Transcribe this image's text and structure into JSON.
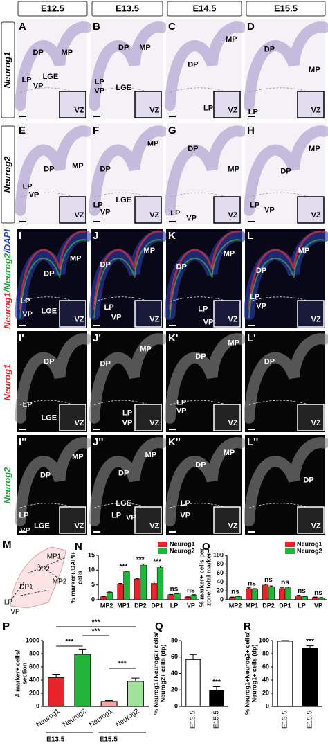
{
  "column_headers": [
    "E12.5",
    "E13.5",
    "E14.5",
    "E15.5"
  ],
  "row_labels": [
    {
      "parts": [
        {
          "text": "Neurog1",
          "color": "#000000"
        }
      ]
    },
    {
      "parts": [
        {
          "text": "Neurog2",
          "color": "#000000"
        }
      ]
    },
    {
      "parts": [
        {
          "text": "Neurog1",
          "color": "#e8242a"
        },
        {
          "text": "/Neurog2",
          "color": "#1fa23a"
        },
        {
          "text": "/DAPI",
          "color": "#1f3fcf"
        }
      ]
    },
    {
      "parts": [
        {
          "text": "Neurog1",
          "color": "#e8242a"
        }
      ]
    },
    {
      "parts": [
        {
          "text": "Neurog2",
          "color": "#1fa23a"
        }
      ]
    }
  ],
  "panels": [
    {
      "letter": "A",
      "labels": [
        "DP",
        "MP",
        "LP",
        "VP",
        "LGE",
        "VZ"
      ]
    },
    {
      "letter": "B",
      "labels": [
        "DP",
        "MP",
        "LP",
        "VP",
        "LGE",
        "VZ"
      ]
    },
    {
      "letter": "C",
      "labels": [
        "DP",
        "MP",
        "LP",
        "VZ"
      ]
    },
    {
      "letter": "D",
      "labels": [
        "DP",
        "MP",
        "LP",
        "VZ"
      ]
    },
    {
      "letter": "E",
      "labels": [
        "MP",
        "DP",
        "LP",
        "VP",
        "VZ"
      ]
    },
    {
      "letter": "F",
      "labels": [
        "MP",
        "DP",
        "LP",
        "VP",
        "LGE",
        "VZ"
      ]
    },
    {
      "letter": "G",
      "labels": [
        "DP",
        "MP",
        "LP",
        "VP",
        "VZ"
      ]
    },
    {
      "letter": "H",
      "labels": [
        "MP",
        "DP",
        "LP",
        "VP",
        "VZ"
      ]
    },
    {
      "letter": "I",
      "labels": [
        "MP",
        "DP",
        "LP",
        "VP",
        "LGE",
        "VZ"
      ]
    },
    {
      "letter": "J",
      "labels": [
        "MP",
        "DP",
        "LP",
        "VP",
        "VZ"
      ]
    },
    {
      "letter": "K",
      "labels": [
        "MP",
        "DP",
        "LP",
        "VP",
        "VZ"
      ]
    },
    {
      "letter": "L",
      "labels": [
        "MP",
        "DP",
        "LP",
        "VP",
        "VZ"
      ]
    },
    {
      "letter": "I'",
      "labels": [
        "DP",
        "LP",
        "LGE",
        "VZ"
      ]
    },
    {
      "letter": "J'",
      "labels": [
        "MP",
        "DP",
        "LP",
        "VP",
        "VZ"
      ]
    },
    {
      "letter": "K'",
      "labels": [
        "MP",
        "DP",
        "LP",
        "VP",
        "VZ"
      ]
    },
    {
      "letter": "L'",
      "labels": [
        "DP",
        "VZ"
      ]
    },
    {
      "letter": "I''",
      "labels": [
        "MP",
        "DP",
        "LP",
        "LGE",
        "VP",
        "VZ"
      ]
    },
    {
      "letter": "J''",
      "labels": [
        "MP",
        "DP",
        "LGE",
        "LP",
        "VP",
        "VZ"
      ]
    },
    {
      "letter": "K''",
      "labels": [
        "MP",
        "DP",
        "LP",
        "VP",
        "VZ"
      ]
    },
    {
      "letter": "L''",
      "labels": [
        "DP",
        "VZ"
      ]
    }
  ],
  "schematic": {
    "letter": "M",
    "labels": [
      "MP1",
      "DP2",
      "MP2",
      "DP1",
      "LP",
      "VP"
    ]
  },
  "chart_data": [
    {
      "type": "bar",
      "label": "N",
      "ylabel": [
        "% marker+/DAPI+",
        "cells"
      ],
      "categories": [
        "MP2",
        "MP1",
        "DP2",
        "DP1",
        "LP",
        "VP"
      ],
      "series": [
        {
          "name": "Neurog1",
          "color": "#e8242a",
          "values": [
            1.0,
            5.2,
            7.0,
            5.5,
            1.7,
            0.9
          ],
          "errors": [
            0.1,
            0.3,
            0.2,
            0.5,
            0.1,
            0.1
          ]
        },
        {
          "name": "Neurog2",
          "color": "#22b33a",
          "values": [
            2.5,
            9.5,
            11.7,
            10.9,
            2.0,
            1.5
          ],
          "errors": [
            0.1,
            0.2,
            0.4,
            0.5,
            0.1,
            0.2
          ]
        }
      ],
      "significance": [
        null,
        "***",
        "***",
        "***",
        "ns",
        "ns"
      ],
      "ylim": [
        0,
        15
      ],
      "yticks": [
        0,
        5,
        10,
        15
      ],
      "legend": "top-right"
    },
    {
      "type": "bar",
      "label": "O",
      "ylabel": [
        "% marker+ cells per",
        "zone/ total marker+"
      ],
      "categories": [
        "MP2",
        "MP1",
        "DP2",
        "DP1",
        "LP",
        "VP"
      ],
      "series": [
        {
          "name": "Neurog1",
          "color": "#e8242a",
          "values": [
            5,
            25,
            33,
            25,
            9,
            5
          ],
          "errors": [
            1,
            2,
            2,
            2,
            1,
            1
          ]
        },
        {
          "name": "Neurog2",
          "color": "#22b33a",
          "values": [
            7,
            24,
            29,
            27,
            7,
            4
          ],
          "errors": [
            1,
            1,
            2,
            2,
            1,
            1
          ]
        }
      ],
      "significance": [
        "ns",
        "ns",
        "ns",
        "ns",
        "ns",
        "ns"
      ],
      "ylim": [
        0,
        100
      ],
      "yticks": [
        0,
        20,
        40,
        60,
        80,
        100
      ],
      "legend": "top-right"
    },
    {
      "type": "bar",
      "label": "P",
      "ylabel": [
        "# marker+ cells/",
        "section"
      ],
      "categories": [
        "Neurog1",
        "Neurog2",
        "Neurog1",
        "Neurog2"
      ],
      "values": [
        440,
        790,
        75,
        380
      ],
      "errors": [
        50,
        80,
        15,
        50
      ],
      "colors": [
        "#e8242a",
        "#22b33a",
        "#f5a3a3",
        "#9fe39b"
      ],
      "groups": [
        "E13.5",
        "E15.5"
      ],
      "annotations": [
        "***",
        "***",
        "***",
        "***"
      ],
      "ylim": [
        0,
        1000
      ],
      "yticks": [
        0,
        200,
        400,
        600,
        800,
        1000
      ]
    },
    {
      "type": "bar",
      "label": "Q",
      "ylabel": [
        "% Neurog1+Neurog2+ cells/",
        "Neurog2+ cells (dp)"
      ],
      "categories": [
        "E13.5",
        "E15.5"
      ],
      "values": [
        57,
        19
      ],
      "errors": [
        6,
        5
      ],
      "colors": [
        "#ffffff",
        "#000000"
      ],
      "significance": [
        null,
        "***"
      ],
      "ylim": [
        0,
        80
      ],
      "yticks": [
        0,
        20,
        40,
        60,
        80
      ]
    },
    {
      "type": "bar",
      "label": "R",
      "ylabel": [
        "% Neurog1+Neurog2+ cells/",
        "Neurog1+ cells (dp)"
      ],
      "categories": [
        "E13.5",
        "E15.5"
      ],
      "values": [
        99,
        88
      ],
      "errors": [
        1,
        4
      ],
      "colors": [
        "#ffffff",
        "#000000"
      ],
      "significance": [
        null,
        "***"
      ],
      "ylim": [
        0,
        100
      ],
      "yticks": [
        0,
        20,
        40,
        60,
        80,
        100
      ]
    }
  ]
}
